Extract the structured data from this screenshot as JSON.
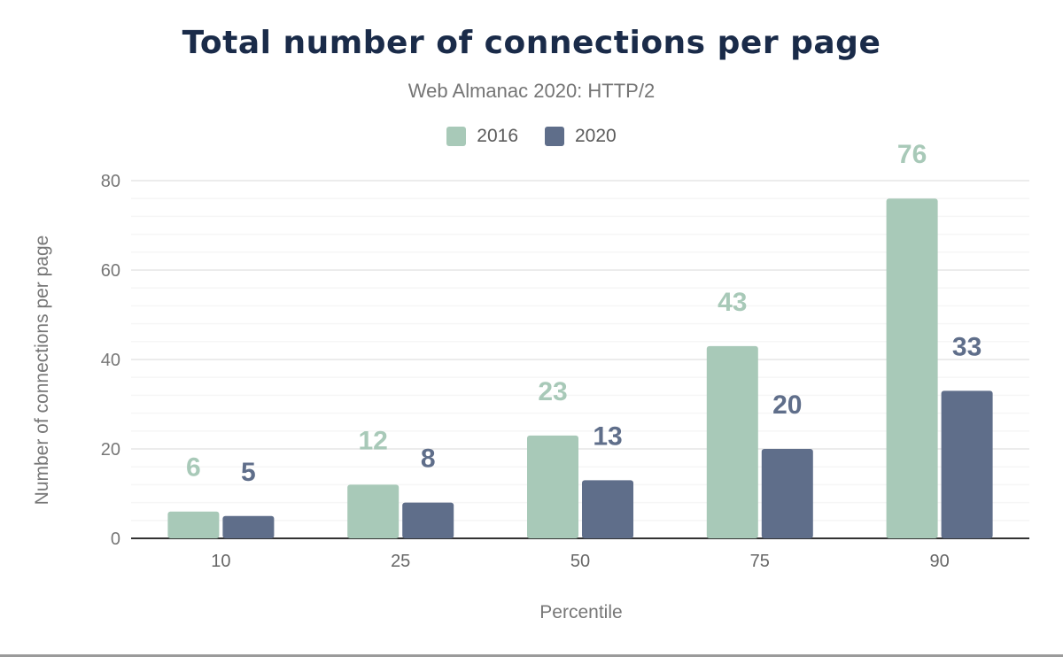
{
  "chart_data": {
    "type": "bar",
    "title": "Total number of connections per page",
    "subtitle": "Web Almanac 2020: HTTP/2",
    "xlabel": "Percentile",
    "ylabel": "Number of connections per page",
    "categories": [
      "10",
      "25",
      "50",
      "75",
      "90"
    ],
    "series": [
      {
        "name": "2016",
        "color": "#a8c9b8",
        "values": [
          6,
          12,
          23,
          43,
          76
        ]
      },
      {
        "name": "2020",
        "color": "#5f6e8a",
        "values": [
          5,
          8,
          13,
          20,
          33
        ]
      }
    ],
    "ylim": [
      0,
      80
    ],
    "yticks": [
      "0",
      "20",
      "40",
      "60",
      "80"
    ],
    "grid": true,
    "legend_position": "top-center",
    "data_labels": true
  }
}
